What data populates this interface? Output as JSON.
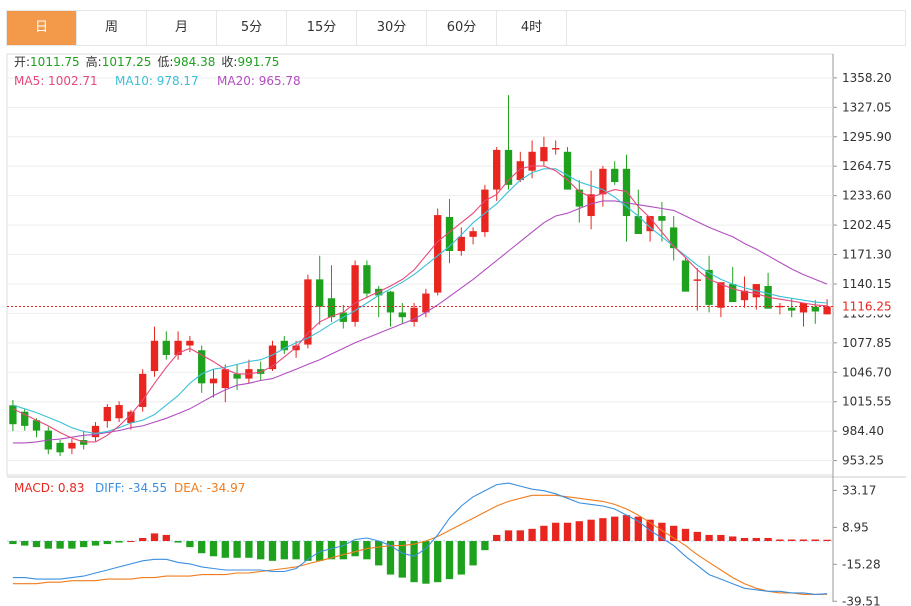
{
  "tabs": [
    "日",
    "周",
    "月",
    "5分",
    "15分",
    "30分",
    "60分",
    "4时"
  ],
  "active_tab": 0,
  "ohlc_info": {
    "open_label": "开:",
    "open": "1011.75",
    "high_label": "高:",
    "high": "1017.25",
    "low_label": "低:",
    "low": "984.38",
    "close_label": "收:",
    "close": "991.75"
  },
  "ma_info": {
    "ma5": "MA5: 1002.71",
    "ma10": "MA10: 978.17",
    "ma20": "MA20: 965.78"
  },
  "macd_info": {
    "macd": "MACD: 0.83",
    "diff": "DIFF: -34.55",
    "dea": "DEA: -34.97"
  },
  "colors": {
    "up": "#e8261f",
    "down": "#1ea21e",
    "ma5": "#e8487a",
    "ma10": "#3cc0d8",
    "ma20": "#b14fbf",
    "diff": "#3b8fe0",
    "dea": "#f07c1e",
    "grid": "#eeeeee",
    "active_tab": "#f39a4a"
  },
  "chart_data": [
    {
      "type": "candlestick",
      "ylim": [
        938,
        1375
      ],
      "y_ticks": [
        "1358.20",
        "1327.05",
        "1295.90",
        "1264.75",
        "1233.60",
        "1202.45",
        "1171.30",
        "1140.15",
        "1109.00",
        "1077.85",
        "1046.70",
        "1015.55",
        "984.40",
        "953.25"
      ],
      "last_price": "1116.25",
      "candles": [
        [
          1011.75,
          1017.25,
          984.38,
          991.75
        ],
        [
          1005,
          1008,
          985,
          990
        ],
        [
          996,
          998,
          978,
          985
        ],
        [
          985,
          989,
          960,
          965
        ],
        [
          972,
          975,
          958,
          962
        ],
        [
          966,
          976,
          960,
          972
        ],
        [
          975,
          985,
          965,
          970
        ],
        [
          978,
          994,
          974,
          990
        ],
        [
          995,
          1013,
          988,
          1010
        ],
        [
          998,
          1016,
          994,
          1012
        ],
        [
          993,
          1007,
          986,
          1005
        ],
        [
          1010,
          1050,
          1005,
          1045
        ],
        [
          1048,
          1095,
          1042,
          1080
        ],
        [
          1080,
          1090,
          1060,
          1065
        ],
        [
          1065,
          1090,
          1060,
          1080
        ],
        [
          1075,
          1085,
          1068,
          1080
        ],
        [
          1070,
          1075,
          1025,
          1035
        ],
        [
          1035,
          1050,
          1020,
          1040
        ],
        [
          1030,
          1055,
          1015,
          1050
        ],
        [
          1045,
          1055,
          1028,
          1040
        ],
        [
          1040,
          1060,
          1035,
          1050
        ],
        [
          1050,
          1058,
          1038,
          1045
        ],
        [
          1050,
          1080,
          1048,
          1075
        ],
        [
          1080,
          1085,
          1066,
          1070
        ],
        [
          1070,
          1080,
          1062,
          1075
        ],
        [
          1076,
          1150,
          1072,
          1145
        ],
        [
          1145,
          1170,
          1097,
          1116
        ],
        [
          1125,
          1160,
          1100,
          1105
        ],
        [
          1110,
          1118,
          1093,
          1100
        ],
        [
          1100,
          1165,
          1095,
          1160
        ],
        [
          1160,
          1165,
          1125,
          1130
        ],
        [
          1135,
          1138,
          1105,
          1128
        ],
        [
          1132,
          1133,
          1095,
          1110
        ],
        [
          1110,
          1120,
          1098,
          1105
        ],
        [
          1100,
          1120,
          1095,
          1115
        ],
        [
          1110,
          1135,
          1105,
          1130
        ],
        [
          1131,
          1220,
          1128,
          1213
        ],
        [
          1211,
          1230,
          1162,
          1175
        ],
        [
          1175,
          1200,
          1170,
          1190
        ],
        [
          1190,
          1200,
          1182,
          1196
        ],
        [
          1195,
          1245,
          1190,
          1240
        ],
        [
          1240,
          1285,
          1228,
          1282
        ],
        [
          1282,
          1340,
          1240,
          1245
        ],
        [
          1250,
          1280,
          1248,
          1270
        ],
        [
          1260,
          1292,
          1252,
          1280
        ],
        [
          1270,
          1296,
          1265,
          1285
        ],
        [
          1284,
          1292,
          1277,
          1284
        ],
        [
          1280,
          1285,
          1240,
          1240
        ],
        [
          1240,
          1250,
          1205,
          1222
        ],
        [
          1212,
          1260,
          1198,
          1235
        ],
        [
          1235,
          1265,
          1222,
          1262
        ],
        [
          1262,
          1270,
          1245,
          1248
        ],
        [
          1262,
          1277,
          1185,
          1212
        ],
        [
          1212,
          1240,
          1197,
          1193
        ],
        [
          1196,
          1212,
          1185,
          1212
        ],
        [
          1212,
          1227,
          1185,
          1207
        ],
        [
          1200,
          1212,
          1165,
          1178
        ],
        [
          1165,
          1168,
          1132,
          1132
        ],
        [
          1145,
          1157,
          1112,
          1145
        ],
        [
          1155,
          1170,
          1110,
          1118
        ],
        [
          1115,
          1140,
          1105,
          1142
        ],
        [
          1140,
          1158,
          1125,
          1121
        ],
        [
          1123,
          1148,
          1115,
          1133
        ],
        [
          1126,
          1140,
          1113,
          1140
        ],
        [
          1138,
          1152,
          1117,
          1114
        ],
        [
          1117,
          1120,
          1108,
          1117
        ],
        [
          1115,
          1125,
          1105,
          1112
        ],
        [
          1110,
          1118,
          1095,
          1120
        ],
        [
          1116,
          1123,
          1098,
          1111
        ],
        [
          1108,
          1124,
          1108,
          1116.25
        ]
      ],
      "ma5": [
        1008,
        1002,
        996,
        990,
        983,
        977,
        973,
        973,
        980,
        990,
        1002,
        1017,
        1035,
        1052,
        1067,
        1072,
        1065,
        1058,
        1050,
        1045,
        1045,
        1047,
        1053,
        1063,
        1073,
        1088,
        1100,
        1106,
        1110,
        1120,
        1126,
        1132,
        1138,
        1145,
        1155,
        1170,
        1185,
        1195,
        1205,
        1215,
        1228,
        1235,
        1250,
        1262,
        1265,
        1265,
        1260,
        1250,
        1238,
        1232,
        1236,
        1240,
        1238,
        1222,
        1210,
        1195,
        1180,
        1168,
        1155,
        1145,
        1140,
        1135,
        1132,
        1130,
        1126,
        1124,
        1122,
        1120,
        1118,
        1117
      ],
      "ma10": [
        1012,
        1008,
        1004,
        999,
        994,
        988,
        984,
        982,
        984,
        988,
        993,
        996,
        1002,
        1012,
        1022,
        1035,
        1045,
        1050,
        1052,
        1055,
        1058,
        1060,
        1065,
        1072,
        1078,
        1083,
        1090,
        1098,
        1105,
        1112,
        1120,
        1128,
        1135,
        1142,
        1150,
        1160,
        1170,
        1180,
        1192,
        1205,
        1215,
        1225,
        1238,
        1250,
        1258,
        1262,
        1262,
        1255,
        1248,
        1244,
        1240,
        1232,
        1222,
        1212,
        1200,
        1190,
        1180,
        1170,
        1160,
        1152,
        1145,
        1140,
        1136,
        1133,
        1130,
        1127,
        1125,
        1123,
        1121,
        1120
      ],
      "ma20": [
        972,
        972,
        973,
        975,
        976,
        978,
        980,
        981,
        983,
        985,
        988,
        990,
        994,
        998,
        1003,
        1008,
        1015,
        1022,
        1028,
        1033,
        1035,
        1038,
        1040,
        1045,
        1050,
        1055,
        1060,
        1066,
        1072,
        1078,
        1083,
        1088,
        1093,
        1098,
        1103,
        1110,
        1118,
        1127,
        1136,
        1145,
        1155,
        1165,
        1175,
        1185,
        1195,
        1205,
        1212,
        1215,
        1220,
        1225,
        1228,
        1228,
        1226,
        1224,
        1222,
        1220,
        1218,
        1212,
        1206,
        1200,
        1195,
        1190,
        1183,
        1177,
        1170,
        1163,
        1156,
        1150,
        1145,
        1140
      ]
    },
    {
      "type": "macd",
      "ylim": [
        -40,
        42
      ],
      "y_ticks": [
        "33.17",
        "8.95",
        "-15.28",
        "-39.51"
      ],
      "hist": [
        -2,
        -3,
        -4,
        -5,
        -5,
        -5,
        -4,
        -3,
        -2,
        -1,
        0,
        2,
        5,
        4,
        -1,
        -4,
        -8,
        -10,
        -11,
        -11,
        -11,
        -12,
        -13,
        -12,
        -12,
        -13,
        -13,
        -12,
        -12,
        -10,
        -12,
        -16,
        -22,
        -24,
        -27,
        -28,
        -27,
        -25,
        -22,
        -16,
        -6,
        4,
        7,
        7,
        8,
        10,
        12,
        12,
        13,
        14,
        15,
        16,
        17,
        16,
        14,
        12,
        10,
        8,
        6,
        4,
        4,
        3,
        2,
        2,
        2,
        1,
        1,
        1,
        1,
        0.83
      ],
      "diff": [
        -24,
        -24,
        -25,
        -25,
        -25,
        -24,
        -23,
        -21,
        -19,
        -17,
        -15,
        -13,
        -12,
        -12,
        -14,
        -15,
        -17,
        -18,
        -19,
        -19,
        -19,
        -19,
        -20,
        -20,
        -18,
        -12,
        -7,
        -5,
        -3,
        1,
        2,
        0,
        -3,
        -8,
        -10,
        -5,
        4,
        15,
        23,
        29,
        33,
        37,
        38,
        36,
        34,
        33,
        31,
        28,
        25,
        24,
        23,
        21,
        17,
        13,
        7,
        2,
        -3,
        -10,
        -16,
        -22,
        -25,
        -28,
        -31,
        -32,
        -33,
        -33,
        -34,
        -34,
        -35,
        -34.55
      ],
      "dea": [
        -28,
        -28,
        -28,
        -27,
        -27,
        -26,
        -26,
        -26,
        -25,
        -25,
        -25,
        -24,
        -24,
        -23,
        -23,
        -23,
        -22,
        -22,
        -22,
        -21,
        -21,
        -20,
        -19,
        -18,
        -17,
        -15,
        -13,
        -11,
        -9,
        -7,
        -5,
        -4,
        -3,
        -3,
        -2,
        0,
        3,
        7,
        11,
        15,
        19,
        23,
        26,
        28,
        30,
        30,
        30,
        29,
        28,
        27,
        26,
        24,
        21,
        17,
        12,
        7,
        2,
        -3,
        -9,
        -14,
        -19,
        -24,
        -28,
        -31,
        -33,
        -34,
        -34,
        -35,
        -35,
        -34.97
      ]
    }
  ]
}
